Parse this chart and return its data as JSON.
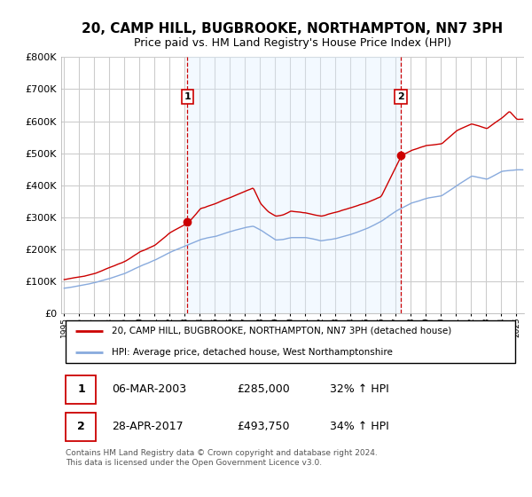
{
  "title": "20, CAMP HILL, BUGBROOKE, NORTHAMPTON, NN7 3PH",
  "subtitle": "Price paid vs. HM Land Registry's House Price Index (HPI)",
  "title_fontsize": 11,
  "subtitle_fontsize": 9,
  "bg_color": "#ffffff",
  "plot_bg_color": "#ffffff",
  "grid_color": "#cccccc",
  "shade_color": "#ddeeff",
  "sale1_year": 2003.18,
  "sale1_price": 285000,
  "sale1_label": "1",
  "sale1_date": "06-MAR-2003",
  "sale1_hpi": "32% ↑ HPI",
  "sale2_year": 2017.33,
  "sale2_price": 493750,
  "sale2_label": "2",
  "sale2_date": "28-APR-2017",
  "sale2_hpi": "34% ↑ HPI",
  "legend1": "20, CAMP HILL, BUGBROOKE, NORTHAMPTON, NN7 3PH (detached house)",
  "legend2": "HPI: Average price, detached house, West Northamptonshire",
  "footer": "Contains HM Land Registry data © Crown copyright and database right 2024.\nThis data is licensed under the Open Government Licence v3.0.",
  "red_color": "#cc0000",
  "blue_color": "#88aadd",
  "ylim": [
    0,
    800000
  ],
  "yticks": [
    0,
    100000,
    200000,
    300000,
    400000,
    500000,
    600000,
    700000,
    800000
  ],
  "xmin": 1994.8,
  "xmax": 2025.5
}
